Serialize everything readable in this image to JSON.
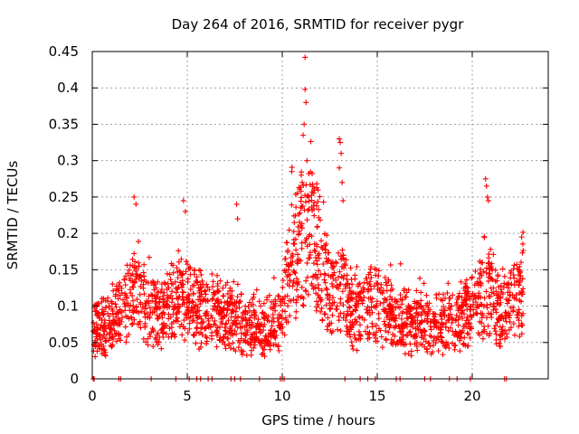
{
  "chart_data": {
    "type": "scatter",
    "title": "Day 264 of 2016, SRMTID for receiver pygr",
    "xlabel": "GPS time / hours",
    "ylabel": "SRMTID / TECUs",
    "xlim": [
      0,
      24
    ],
    "ylim": [
      0,
      0.45
    ],
    "xticks": [
      0,
      5,
      10,
      15,
      20
    ],
    "xtick_labels": [
      "0",
      "5",
      "10",
      "15",
      "20"
    ],
    "yticks": [
      0,
      0.05,
      0.1,
      0.15,
      0.2,
      0.25,
      0.3,
      0.35,
      0.4,
      0.45
    ],
    "ytick_labels": [
      "0",
      "0.05",
      "0.1",
      "0.15",
      "0.2",
      "0.25",
      "0.3",
      "0.35",
      "0.4",
      "0.45"
    ],
    "grid": true,
    "marker": "+",
    "color": "#ff0000",
    "series": [
      {
        "name": "SRMTID",
        "profile": [
          [
            0.0,
            0.07
          ],
          [
            0.5,
            0.07
          ],
          [
            1.0,
            0.075
          ],
          [
            1.5,
            0.085
          ],
          [
            2.0,
            0.11
          ],
          [
            2.5,
            0.12
          ],
          [
            3.0,
            0.09
          ],
          [
            3.5,
            0.085
          ],
          [
            4.0,
            0.1
          ],
          [
            4.5,
            0.11
          ],
          [
            5.0,
            0.12
          ],
          [
            5.5,
            0.1
          ],
          [
            6.0,
            0.085
          ],
          [
            6.5,
            0.09
          ],
          [
            7.0,
            0.085
          ],
          [
            7.5,
            0.085
          ],
          [
            8.0,
            0.07
          ],
          [
            8.5,
            0.075
          ],
          [
            9.0,
            0.07
          ],
          [
            9.5,
            0.075
          ],
          [
            10.0,
            0.09
          ],
          [
            10.5,
            0.16
          ],
          [
            11.0,
            0.19
          ],
          [
            11.5,
            0.2
          ],
          [
            12.0,
            0.17
          ],
          [
            12.5,
            0.12
          ],
          [
            13.0,
            0.13
          ],
          [
            13.5,
            0.1
          ],
          [
            14.0,
            0.09
          ],
          [
            14.5,
            0.1
          ],
          [
            15.0,
            0.1
          ],
          [
            15.5,
            0.09
          ],
          [
            16.0,
            0.085
          ],
          [
            16.5,
            0.075
          ],
          [
            17.0,
            0.075
          ],
          [
            17.5,
            0.075
          ],
          [
            18.0,
            0.07
          ],
          [
            18.5,
            0.075
          ],
          [
            19.0,
            0.075
          ],
          [
            19.5,
            0.08
          ],
          [
            20.0,
            0.1
          ],
          [
            20.5,
            0.11
          ],
          [
            21.0,
            0.13
          ],
          [
            21.5,
            0.09
          ],
          [
            22.0,
            0.1
          ],
          [
            22.5,
            0.12
          ]
        ],
        "x_range": [
          0.05,
          22.7
        ],
        "sample_count": 2200,
        "peaks": [
          {
            "x": 2.2,
            "y": 0.25
          },
          {
            "x": 2.3,
            "y": 0.24
          },
          {
            "x": 4.8,
            "y": 0.245
          },
          {
            "x": 4.9,
            "y": 0.23
          },
          {
            "x": 7.6,
            "y": 0.24
          },
          {
            "x": 7.65,
            "y": 0.22
          },
          {
            "x": 10.5,
            "y": 0.285
          },
          {
            "x": 11.2,
            "y": 0.442
          },
          {
            "x": 11.2,
            "y": 0.398
          },
          {
            "x": 11.25,
            "y": 0.38
          },
          {
            "x": 11.15,
            "y": 0.35
          },
          {
            "x": 11.1,
            "y": 0.335
          },
          {
            "x": 11.3,
            "y": 0.3
          },
          {
            "x": 11.0,
            "y": 0.28
          },
          {
            "x": 11.05,
            "y": 0.27
          },
          {
            "x": 11.4,
            "y": 0.25
          },
          {
            "x": 13.0,
            "y": 0.33
          },
          {
            "x": 13.05,
            "y": 0.325
          },
          {
            "x": 13.1,
            "y": 0.31
          },
          {
            "x": 13.0,
            "y": 0.29
          },
          {
            "x": 13.15,
            "y": 0.27
          },
          {
            "x": 13.2,
            "y": 0.245
          },
          {
            "x": 20.7,
            "y": 0.275
          },
          {
            "x": 20.75,
            "y": 0.265
          },
          {
            "x": 20.8,
            "y": 0.25
          },
          {
            "x": 20.85,
            "y": 0.245
          },
          {
            "x": 22.6,
            "y": 0.195
          }
        ],
        "zero_points": [
          0.05,
          0.1,
          1.4,
          1.5,
          3.1,
          4.4,
          5.1,
          5.5,
          5.7,
          6.1,
          6.3,
          7.3,
          7.5,
          7.8,
          8.8,
          9.9,
          10.0,
          10.1,
          13.3,
          14.1,
          14.5,
          14.9,
          16.0,
          16.2,
          17.5,
          17.8,
          18.8,
          19.2,
          19.9,
          21.7,
          21.8
        ]
      }
    ]
  }
}
